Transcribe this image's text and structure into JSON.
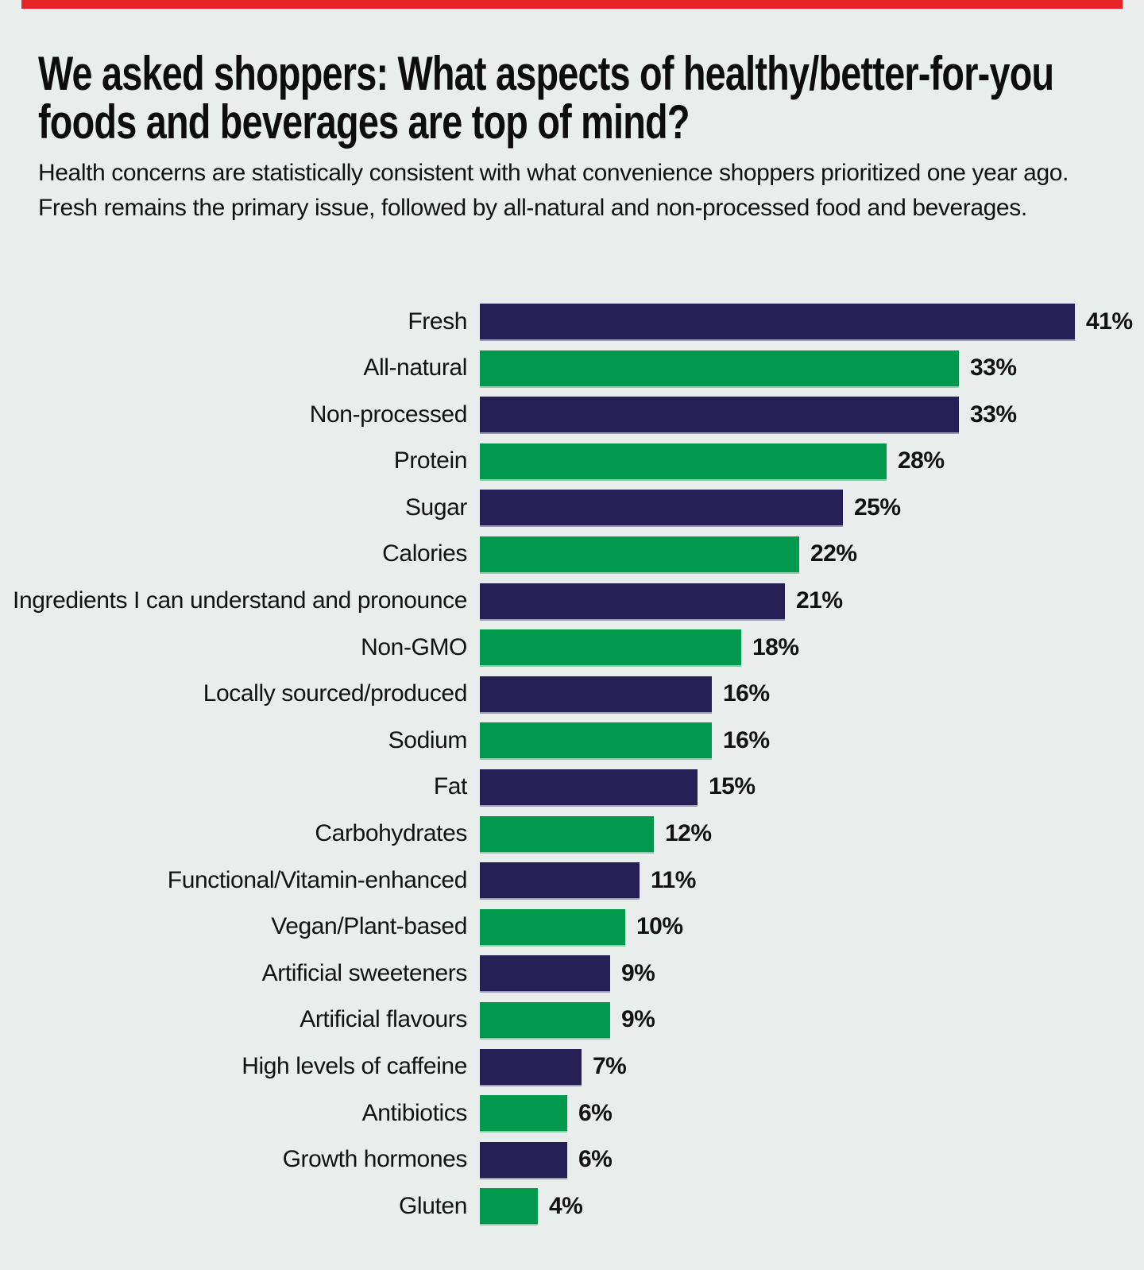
{
  "colors": {
    "background": "#E9EDEB",
    "accent_red": "#E8242B",
    "navy": "#252156",
    "green": "#00994D",
    "text": "#111111"
  },
  "header": {
    "title_line1": "We asked shoppers: What aspects of healthy/better-for-you",
    "title_line2": "foods and beverages are top of mind?",
    "subtitle_line1": "Health concerns are statistically consistent with what convenience shoppers prioritized one year ago.",
    "subtitle_line2": "Fresh remains the primary issue, followed by all-natural and non-processed food and beverages."
  },
  "chart_data": {
    "type": "bar",
    "orientation": "horizontal",
    "title": "We asked shoppers: What aspects of healthy/better-for-you foods and beverages are top of mind?",
    "subtitle": "Health concerns are statistically consistent with what convenience shoppers prioritized one year ago. Fresh remains the primary issue, followed by all-natural and non-processed food and beverages.",
    "xlabel": "",
    "ylabel": "",
    "axis": "none",
    "grid": false,
    "legend": "none",
    "value_range": [
      0,
      41
    ],
    "categories": [
      "Fresh",
      "All-natural",
      "Non-processed",
      "Protein",
      "Sugar",
      "Calories",
      "Ingredients I can understand and pronounce",
      "Non-GMO",
      "Locally sourced/produced",
      "Sodium",
      "Fat",
      "Carbohydrates",
      "Functional/Vitamin-enhanced",
      "Vegan/Plant-based",
      "Artificial sweeteners",
      "Artificial flavours",
      "High levels of caffeine",
      "Antibiotics",
      "Growth hormones",
      "Gluten"
    ],
    "values": [
      41,
      33,
      33,
      28,
      25,
      22,
      21,
      18,
      16,
      16,
      15,
      12,
      11,
      10,
      9,
      9,
      7,
      6,
      6,
      4
    ],
    "value_labels": [
      "41%",
      "33%",
      "33%",
      "28%",
      "25%",
      "22%",
      "21%",
      "18%",
      "16%",
      "16%",
      "15%",
      "12%",
      "11%",
      "10%",
      "9%",
      "9%",
      "7%",
      "6%",
      "6%",
      "4%"
    ],
    "bar_colors": [
      "#252156",
      "#00994D",
      "#252156",
      "#00994D",
      "#252156",
      "#00994D",
      "#252156",
      "#00994D",
      "#252156",
      "#00994D",
      "#252156",
      "#00994D",
      "#252156",
      "#00994D",
      "#252156",
      "#00994D",
      "#252156",
      "#00994D",
      "#252156",
      "#00994D"
    ]
  }
}
